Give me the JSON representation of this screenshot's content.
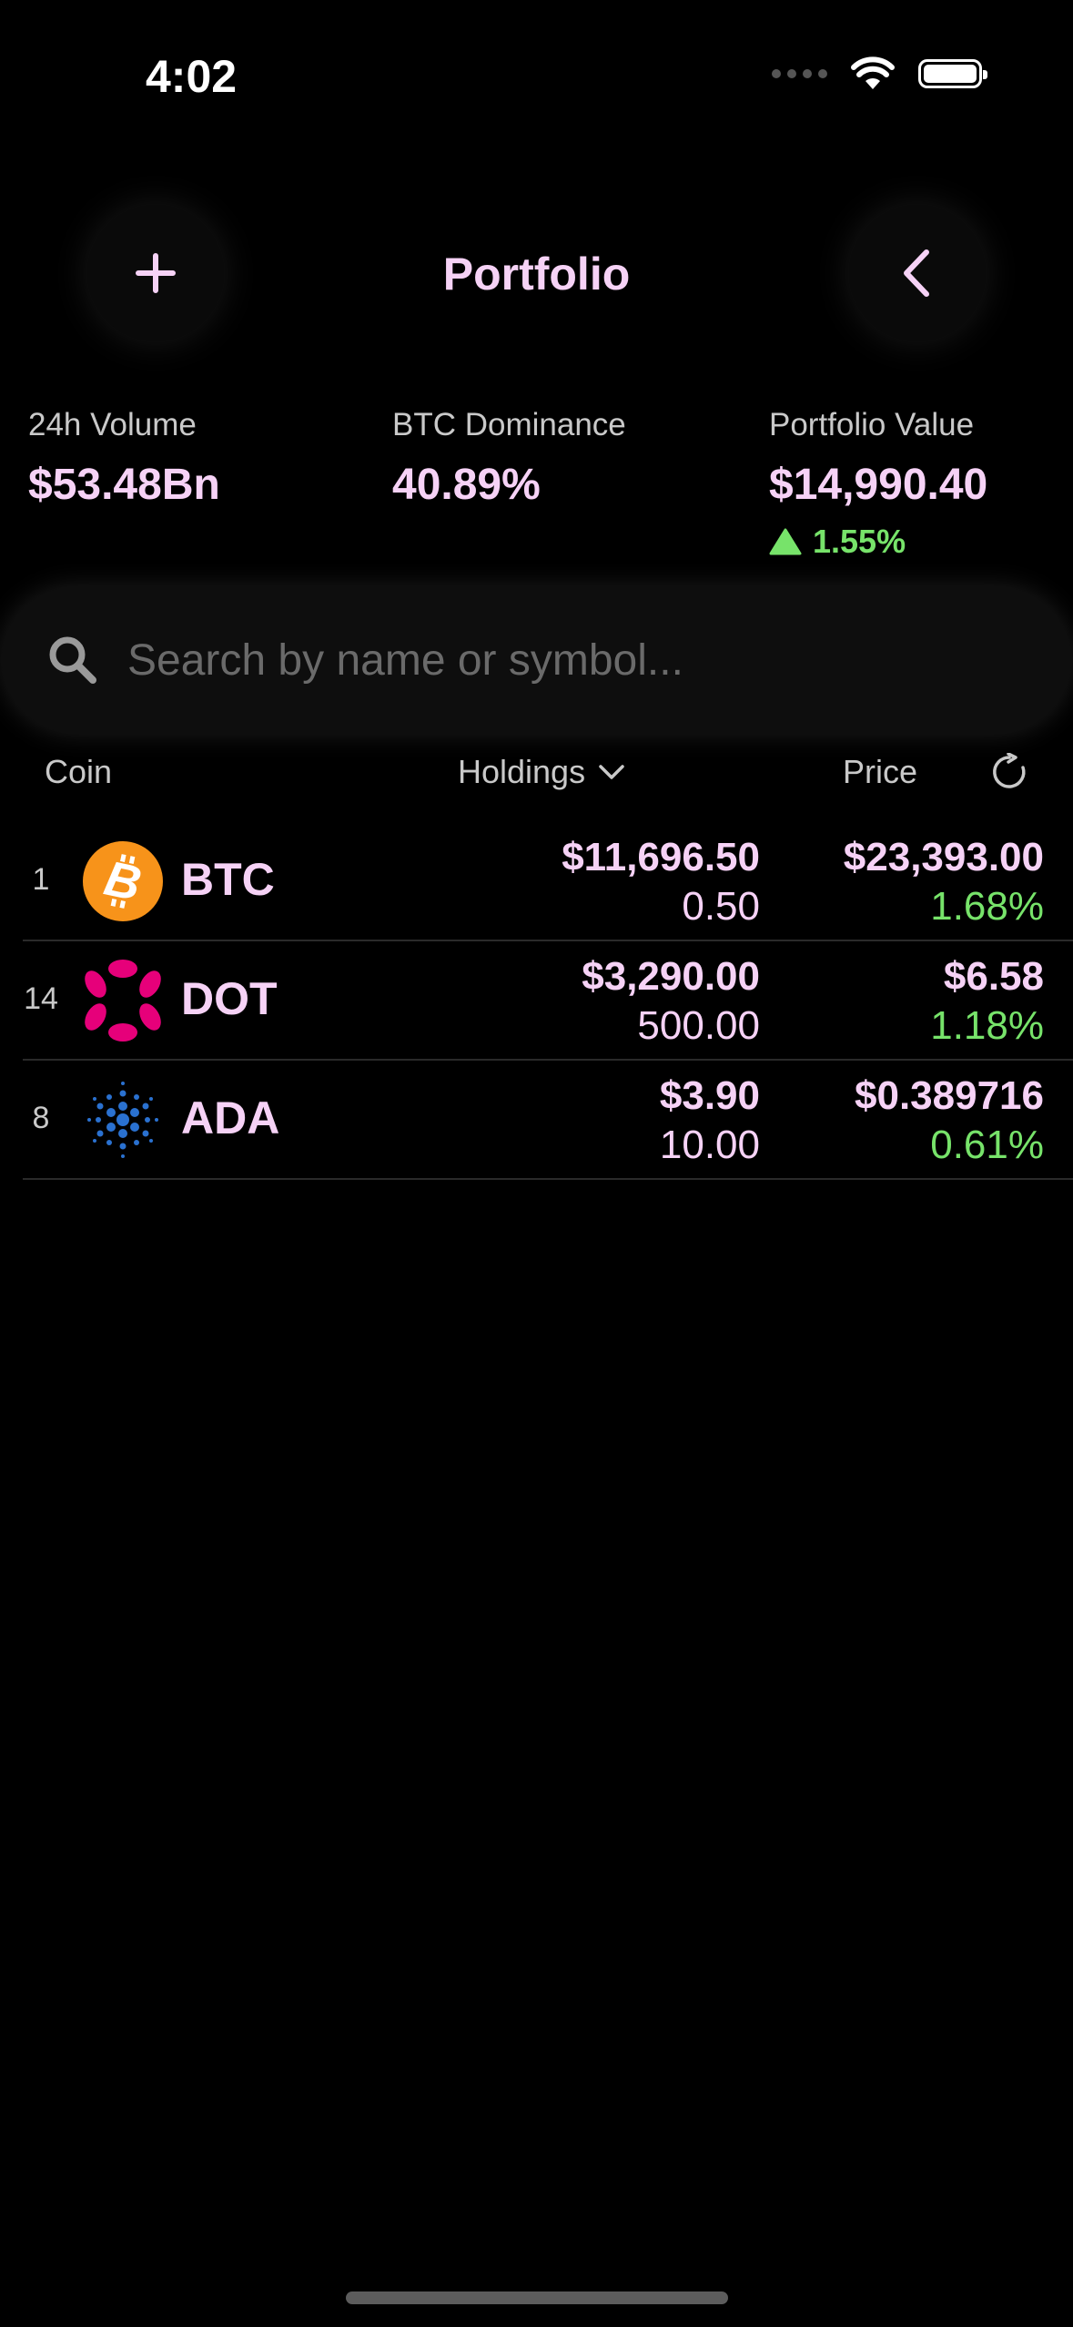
{
  "status_bar": {
    "time": "4:02"
  },
  "header": {
    "title": "Portfolio",
    "left_icon": "plus-icon",
    "right_icon": "chevron-left-icon"
  },
  "stats": [
    {
      "label": "24h Volume",
      "value": "$53.48Bn"
    },
    {
      "label": "BTC Dominance",
      "value": "40.89%"
    },
    {
      "label": "Portfolio Value",
      "value": "$14,990.40",
      "change": "1.55%",
      "change_direction": "up"
    }
  ],
  "search": {
    "placeholder": "Search by name or symbol...",
    "value": ""
  },
  "columns": {
    "coin": "Coin",
    "holdings": "Holdings",
    "price": "Price"
  },
  "coins": [
    {
      "rank": "1",
      "symbol": "BTC",
      "holdings_value": "$11,696.50",
      "holdings_amount": "0.50",
      "price": "$23,393.00",
      "change": "1.68%"
    },
    {
      "rank": "14",
      "symbol": "DOT",
      "holdings_value": "$3,290.00",
      "holdings_amount": "500.00",
      "price": "$6.58",
      "change": "1.18%"
    },
    {
      "rank": "8",
      "symbol": "ADA",
      "holdings_value": "$3.90",
      "holdings_amount": "10.00",
      "price": "$0.389716",
      "change": "0.61%"
    }
  ],
  "colors": {
    "accent": "#f6d2f6",
    "positive": "#77e36a",
    "background": "#000000",
    "btc": "#f7931a",
    "dot": "#e6007a",
    "ada": "#2a71d0"
  }
}
